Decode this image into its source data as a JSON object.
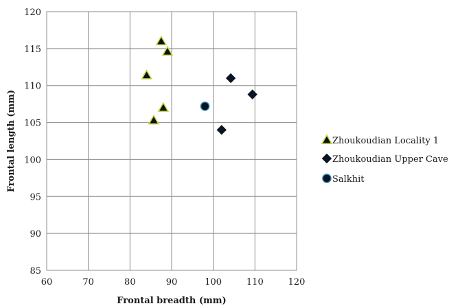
{
  "chart_data": {
    "type": "scatter",
    "title": "",
    "xlabel": "Frontal breadth (mm)",
    "ylabel": "Frontal length (mm)",
    "xlim": [
      60,
      120
    ],
    "ylim": [
      85,
      120
    ],
    "xticks": [
      60,
      70,
      80,
      90,
      100,
      110,
      120
    ],
    "yticks": [
      85,
      90,
      95,
      100,
      105,
      110,
      115,
      120
    ],
    "grid": true,
    "legend_position": "right",
    "series": [
      {
        "name": "Zhoukoudian Locality 1",
        "marker": "triangle",
        "color": "#111111",
        "edge": "#c8d84a",
        "points": [
          {
            "x": 87.5,
            "y": 116.0
          },
          {
            "x": 89.0,
            "y": 114.6
          },
          {
            "x": 84.0,
            "y": 111.4
          },
          {
            "x": 88.0,
            "y": 107.0
          },
          {
            "x": 85.7,
            "y": 105.3
          }
        ]
      },
      {
        "name": "Zhoukoudian Upper Cave",
        "marker": "diamond",
        "color": "#0b1424",
        "edge": "#0b1424",
        "points": [
          {
            "x": 104.2,
            "y": 111.0
          },
          {
            "x": 109.4,
            "y": 108.8
          },
          {
            "x": 102.0,
            "y": 104.0
          }
        ]
      },
      {
        "name": "Salkhit",
        "marker": "circle",
        "color": "#0b1424",
        "edge": "#2a7fa0",
        "points": [
          {
            "x": 98.0,
            "y": 107.2
          }
        ]
      }
    ]
  }
}
